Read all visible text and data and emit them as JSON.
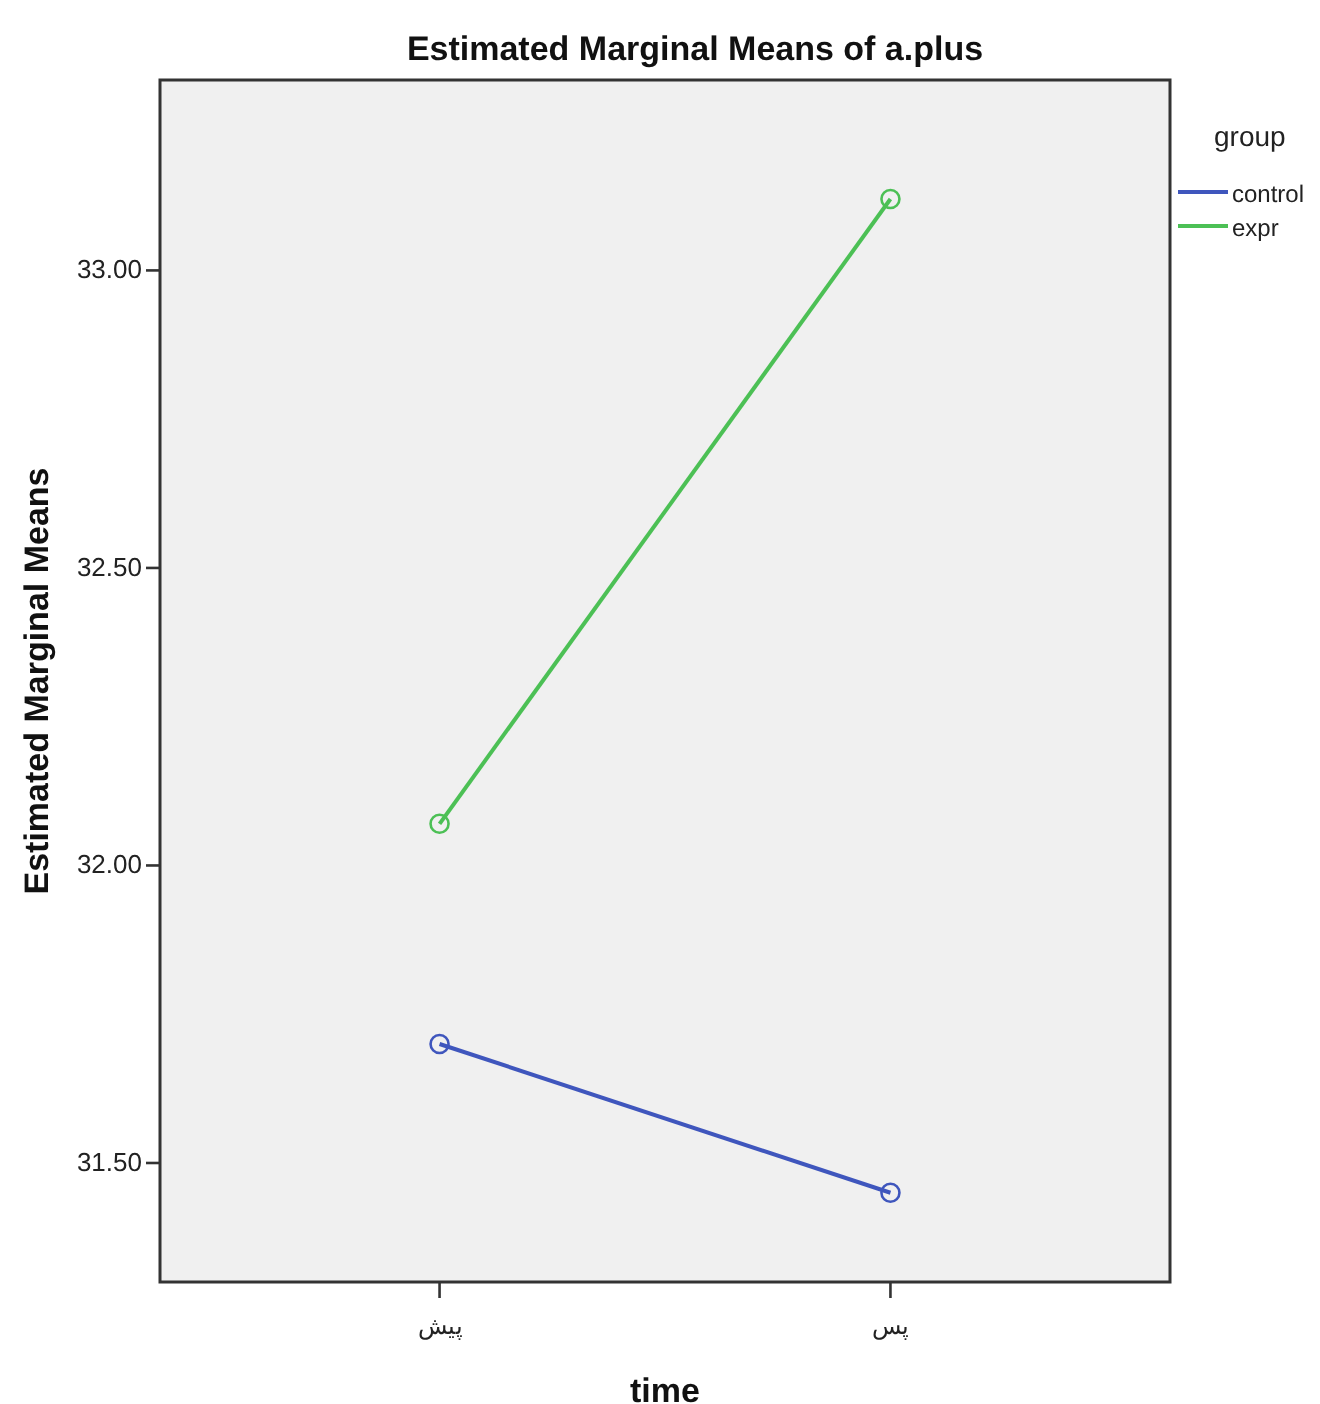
{
  "chart_data": {
    "type": "line",
    "title": "Estimated Marginal Means of a.plus",
    "xlabel": "time",
    "ylabel": "Estimated Marginal Means",
    "legend_title": "group",
    "categories": [
      "پیش",
      "پس"
    ],
    "series": [
      {
        "name": "control",
        "color": "#3f56bd",
        "values": [
          31.7,
          31.45
        ]
      },
      {
        "name": "expr",
        "color": "#4cc055",
        "values": [
          32.07,
          33.12
        ]
      }
    ],
    "ylim": [
      31.3,
      33.32
    ],
    "yticks": [
      {
        "value": 31.5,
        "label": "31.50"
      },
      {
        "value": 32,
        "label": "32.00"
      },
      {
        "value": 32.5,
        "label": "32.50"
      },
      {
        "value": 33,
        "label": "33.00"
      }
    ],
    "marker": "circle",
    "legend": "right",
    "grid": false
  }
}
